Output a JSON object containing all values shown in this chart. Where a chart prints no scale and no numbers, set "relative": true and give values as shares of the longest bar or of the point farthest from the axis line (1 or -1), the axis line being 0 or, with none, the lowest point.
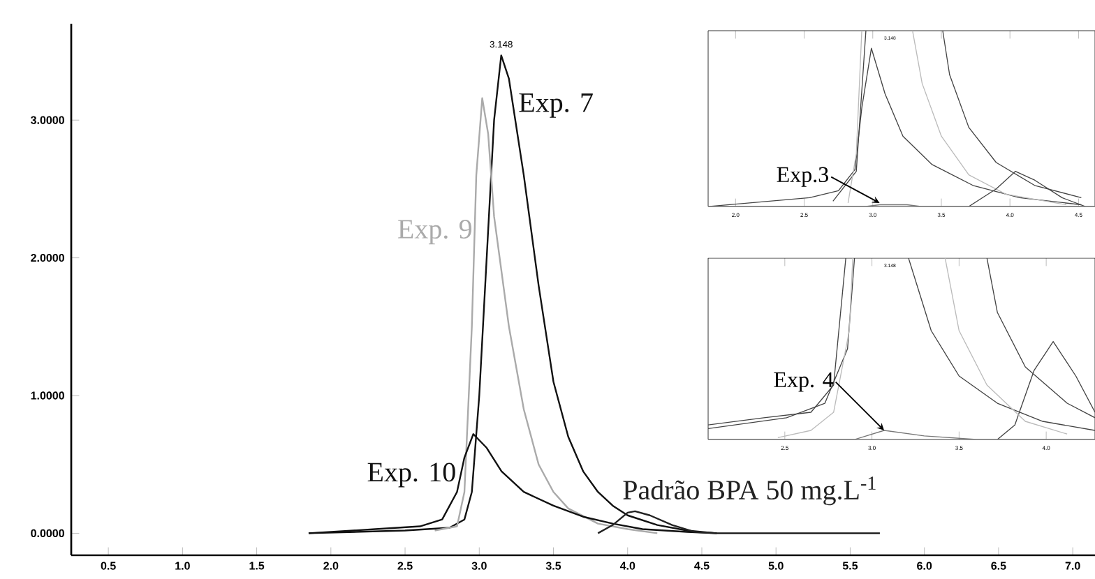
{
  "chart_data": [
    {
      "type": "line",
      "xlim": [
        0.25,
        7.15
      ],
      "ylim": [
        -0.16,
        3.7
      ],
      "xticks": [
        {
          "value": 0.5,
          "label": "0.5"
        },
        {
          "value": 1,
          "label": "1.0"
        },
        {
          "value": 1.5,
          "label": "1.5"
        },
        {
          "value": 2,
          "label": "2.0"
        },
        {
          "value": 2.5,
          "label": "2.5"
        },
        {
          "value": 3,
          "label": "3.0"
        },
        {
          "value": 3.5,
          "label": "3.5"
        },
        {
          "value": 4,
          "label": "4.0"
        },
        {
          "value": 4.5,
          "label": "4.5"
        },
        {
          "value": 5,
          "label": "5.0"
        },
        {
          "value": 5.5,
          "label": "5.5"
        },
        {
          "value": 6,
          "label": "6.0"
        },
        {
          "value": 6.5,
          "label": "6.5"
        },
        {
          "value": 7,
          "label": "7.0"
        }
      ],
      "yticks": [
        {
          "value": 0,
          "label": "0.0000"
        },
        {
          "value": 1,
          "label": "1.0000"
        },
        {
          "value": 2,
          "label": "2.0000"
        },
        {
          "value": 3,
          "label": "3.0000"
        }
      ],
      "annotations": [
        {
          "text": "3.148",
          "x": 3.148,
          "y": 3.47
        }
      ],
      "series": [
        {
          "name": "Exp. 7",
          "color": "#111111",
          "x": [
            1.85,
            2.5,
            2.8,
            2.9,
            2.95,
            3.0,
            3.05,
            3.1,
            3.148,
            3.2,
            3.3,
            3.4,
            3.5,
            3.6,
            3.7,
            3.8,
            3.9,
            4.0,
            4.2,
            4.4,
            4.6,
            5.7
          ],
          "values": [
            0,
            0.02,
            0.04,
            0.1,
            0.3,
            1.0,
            2.0,
            3.0,
            3.47,
            3.3,
            2.6,
            1.8,
            1.1,
            0.7,
            0.45,
            0.3,
            0.2,
            0.13,
            0.06,
            0.02,
            0,
            0
          ]
        },
        {
          "name": "Exp. 9",
          "color": "#aaaaaa",
          "x": [
            2.7,
            2.85,
            2.9,
            2.95,
            2.98,
            3.02,
            3.06,
            3.1,
            3.2,
            3.3,
            3.4,
            3.5,
            3.6,
            3.8,
            4.0,
            4.2
          ],
          "values": [
            0.02,
            0.05,
            0.3,
            1.5,
            2.6,
            3.16,
            2.9,
            2.3,
            1.5,
            0.9,
            0.5,
            0.3,
            0.18,
            0.07,
            0.03,
            0
          ]
        },
        {
          "name": "Exp. 10",
          "color": "#111111",
          "x": [
            1.85,
            2.3,
            2.6,
            2.75,
            2.85,
            2.9,
            2.96,
            3.05,
            3.15,
            3.3,
            3.5,
            3.7,
            3.9,
            4.1,
            4.4,
            4.6
          ],
          "values": [
            0,
            0.03,
            0.05,
            0.1,
            0.3,
            0.55,
            0.72,
            0.62,
            0.45,
            0.3,
            0.2,
            0.12,
            0.07,
            0.03,
            0.01,
            0
          ]
        },
        {
          "name": "Padrão BPA 50 mg.L$^{-1}$",
          "color": "#222222",
          "x": [
            3.8,
            3.9,
            4.0,
            4.05,
            4.15,
            4.3,
            4.45,
            4.6
          ],
          "values": [
            0,
            0.06,
            0.15,
            0.16,
            0.13,
            0.06,
            0.01,
            0
          ]
        }
      ]
    },
    {
      "type": "line",
      "relative": true,
      "xlim": [
        1.8,
        4.62
      ],
      "xticks": [
        {
          "value": 2,
          "label": "2.0"
        },
        {
          "value": 2.5,
          "label": "2.5"
        },
        {
          "value": 3,
          "label": "3.0"
        },
        {
          "value": 3.5,
          "label": "3.5"
        },
        {
          "value": 4,
          "label": "4.0"
        },
        {
          "value": 4.5,
          "label": "4.5"
        }
      ],
      "annotations": [
        "3.148",
        {
          "text": "Exp.3",
          "x": 3.05,
          "y": 0.02
        }
      ],
      "series": [
        {
          "color": "#444444",
          "x": [
            1.8,
            2.54,
            2.75,
            2.87,
            2.92,
            2.99,
            3.09,
            3.22,
            3.43,
            3.73,
            4.07,
            4.52
          ],
          "values": [
            0,
            0.05,
            0.09,
            0.21,
            0.56,
            0.9,
            0.64,
            0.4,
            0.24,
            0.12,
            0.05,
            0.01
          ]
        },
        {
          "color": "#444444",
          "x": [
            2.71,
            2.88,
            2.95
          ],
          "values": [
            0.03,
            0.2,
            1
          ]
        },
        {
          "color": "#444444",
          "x": [
            3.51,
            3.56,
            3.7,
            3.9,
            4.18,
            4.52
          ],
          "values": [
            1,
            0.75,
            0.45,
            0.25,
            0.12,
            0.05
          ]
        },
        {
          "color": "#bbbbbb",
          "x": [
            2.82,
            2.88,
            2.92
          ],
          "values": [
            0.02,
            0.3,
            1
          ]
        },
        {
          "color": "#bbbbbb",
          "x": [
            3.29,
            3.36,
            3.5,
            3.7,
            3.97,
            4.41
          ],
          "values": [
            1,
            0.7,
            0.4,
            0.18,
            0.07,
            0.01
          ]
        },
        {
          "color": "#444444",
          "x": [
            3.7,
            3.9,
            4.04,
            4.18,
            4.38,
            4.55
          ],
          "values": [
            0,
            0.1,
            0.2,
            0.15,
            0.05,
            0
          ]
        },
        {
          "color": "#777777",
          "x": [
            1.8,
            2.95,
            3.05,
            3.25,
            3.35,
            4.62
          ],
          "values": [
            0,
            0,
            0.01,
            0.01,
            0,
            0
          ]
        }
      ]
    },
    {
      "type": "line",
      "relative": true,
      "xlim": [
        2.06,
        4.28
      ],
      "xticks": [
        {
          "value": 2.5,
          "label": "2.5"
        },
        {
          "value": 3,
          "label": "3.0"
        },
        {
          "value": 3.5,
          "label": "3.5"
        },
        {
          "value": 4,
          "label": "4.0"
        }
      ],
      "annotations": [
        "3.148",
        {
          "text": "Exp. 4",
          "x": 3.07,
          "y": 0.05
        }
      ],
      "series": [
        {
          "color": "#444444",
          "x": [
            3.72,
            3.82,
            3.93,
            4.04,
            4.17,
            4.28
          ],
          "values": [
            0,
            0.08,
            0.38,
            0.54,
            0.35,
            0.15
          ]
        },
        {
          "color": "#444444",
          "x": [
            2.06,
            2.38,
            2.65,
            2.78,
            2.85
          ],
          "values": [
            0.08,
            0.12,
            0.15,
            0.3,
            1
          ]
        },
        {
          "color": "#444444",
          "x": [
            3.21,
            3.34,
            3.5,
            3.72,
            3.98,
            4.28
          ],
          "values": [
            1,
            0.6,
            0.35,
            0.2,
            0.1,
            0.05
          ]
        },
        {
          "color": "#444444",
          "x": [
            2.06,
            2.51,
            2.73,
            2.86,
            2.9
          ],
          "values": [
            0.06,
            0.12,
            0.2,
            0.5,
            1
          ]
        },
        {
          "color": "#444444",
          "x": [
            3.66,
            3.72,
            3.88,
            4.12,
            4.28
          ],
          "values": [
            1,
            0.7,
            0.4,
            0.2,
            0.12
          ]
        },
        {
          "color": "#bbbbbb",
          "x": [
            2.46,
            2.65,
            2.78,
            2.87,
            2.89
          ],
          "values": [
            0.01,
            0.05,
            0.15,
            0.6,
            1
          ]
        },
        {
          "color": "#bbbbbb",
          "x": [
            3.42,
            3.5,
            3.66,
            3.88,
            4.12
          ],
          "values": [
            1,
            0.6,
            0.3,
            0.1,
            0.03
          ]
        },
        {
          "color": "#777777",
          "x": [
            2.06,
            2.9,
            3.07,
            3.3,
            3.6,
            4.28
          ],
          "values": [
            0,
            0,
            0.05,
            0.02,
            0,
            0
          ]
        }
      ]
    }
  ]
}
